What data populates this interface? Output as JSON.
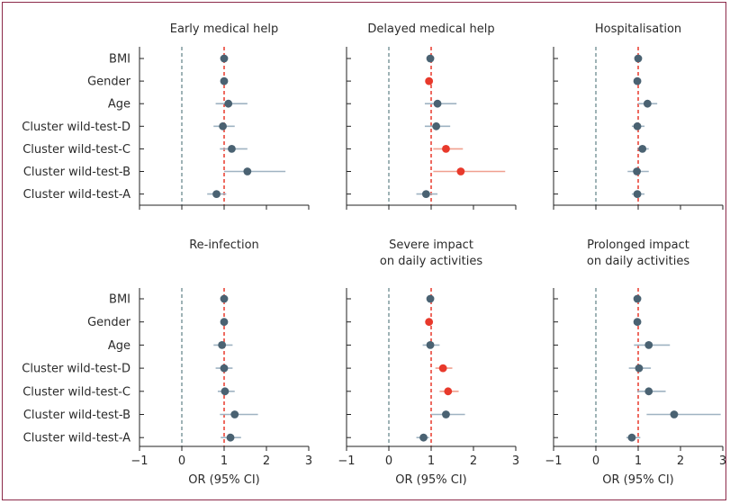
{
  "chart_data": {
    "type": "forest",
    "rows": [
      "BMI",
      "Gender",
      "Age",
      "Cluster wild-test-D",
      "Cluster wild-test-C",
      "Cluster wild-test-B",
      "Cluster wild-test-A"
    ],
    "xlim": [
      -1,
      3
    ],
    "xticks": [
      "−1",
      "0",
      "1",
      "2",
      "3"
    ],
    "xlabel": "OR (95% CI)",
    "reference_lines": {
      "null_effect": 0,
      "unity": 1
    },
    "colors": {
      "not_significant": "#4a6272",
      "significant": "#e8392b",
      "ci_not_significant": "#9fb3c2",
      "ci_significant": "#f0a08f",
      "ref_dashed_gray": "#6b8a8f",
      "ref_dashed_red": "#e8392b"
    },
    "panels": [
      {
        "title": [
          "Early medical help"
        ],
        "points": [
          {
            "or": 1.0,
            "lo": 1.0,
            "hi": 1.0,
            "sig": false
          },
          {
            "or": 1.0,
            "lo": 1.0,
            "hi": 1.0,
            "sig": false
          },
          {
            "or": 1.1,
            "lo": 0.8,
            "hi": 1.55,
            "sig": false
          },
          {
            "or": 0.97,
            "lo": 0.75,
            "hi": 1.25,
            "sig": false
          },
          {
            "or": 1.18,
            "lo": 0.9,
            "hi": 1.55,
            "sig": false
          },
          {
            "or": 1.55,
            "lo": 1.0,
            "hi": 2.45,
            "sig": false
          },
          {
            "or": 0.82,
            "lo": 0.6,
            "hi": 1.05,
            "sig": false
          }
        ]
      },
      {
        "title": [
          "Delayed medical help"
        ],
        "points": [
          {
            "or": 0.98,
            "lo": 0.98,
            "hi": 0.98,
            "sig": false
          },
          {
            "or": 0.95,
            "lo": 0.95,
            "hi": 0.95,
            "sig": true
          },
          {
            "or": 1.15,
            "lo": 0.85,
            "hi": 1.6,
            "sig": false
          },
          {
            "or": 1.12,
            "lo": 0.85,
            "hi": 1.45,
            "sig": false
          },
          {
            "or": 1.35,
            "lo": 1.05,
            "hi": 1.75,
            "sig": true
          },
          {
            "or": 1.7,
            "lo": 1.05,
            "hi": 2.75,
            "sig": true
          },
          {
            "or": 0.88,
            "lo": 0.65,
            "hi": 1.15,
            "sig": false
          }
        ]
      },
      {
        "title": [
          "Hospitalisation"
        ],
        "points": [
          {
            "or": 1.0,
            "lo": 1.0,
            "hi": 1.0,
            "sig": false
          },
          {
            "or": 0.98,
            "lo": 0.98,
            "hi": 0.98,
            "sig": false
          },
          {
            "or": 1.22,
            "lo": 1.0,
            "hi": 1.45,
            "sig": false
          },
          {
            "or": 0.98,
            "lo": 0.85,
            "hi": 1.15,
            "sig": false
          },
          {
            "or": 1.1,
            "lo": 0.98,
            "hi": 1.25,
            "sig": false
          },
          {
            "or": 0.97,
            "lo": 0.75,
            "hi": 1.25,
            "sig": false
          },
          {
            "or": 0.98,
            "lo": 0.85,
            "hi": 1.15,
            "sig": false
          }
        ]
      },
      {
        "title": [
          "Re-infection"
        ],
        "points": [
          {
            "or": 1.0,
            "lo": 1.0,
            "hi": 1.0,
            "sig": false
          },
          {
            "or": 1.0,
            "lo": 1.0,
            "hi": 1.0,
            "sig": false
          },
          {
            "or": 0.95,
            "lo": 0.75,
            "hi": 1.2,
            "sig": false
          },
          {
            "or": 1.0,
            "lo": 0.8,
            "hi": 1.2,
            "sig": false
          },
          {
            "or": 1.02,
            "lo": 0.85,
            "hi": 1.25,
            "sig": false
          },
          {
            "or": 1.25,
            "lo": 0.9,
            "hi": 1.8,
            "sig": false
          },
          {
            "or": 1.15,
            "lo": 0.92,
            "hi": 1.4,
            "sig": false
          }
        ]
      },
      {
        "title": [
          "Severe impact",
          "on daily activities"
        ],
        "points": [
          {
            "or": 0.98,
            "lo": 0.98,
            "hi": 0.98,
            "sig": false
          },
          {
            "or": 0.95,
            "lo": 0.95,
            "hi": 0.95,
            "sig": true
          },
          {
            "or": 0.98,
            "lo": 0.8,
            "hi": 1.2,
            "sig": false
          },
          {
            "or": 1.28,
            "lo": 1.1,
            "hi": 1.5,
            "sig": true
          },
          {
            "or": 1.4,
            "lo": 1.2,
            "hi": 1.65,
            "sig": true
          },
          {
            "or": 1.35,
            "lo": 1.0,
            "hi": 1.8,
            "sig": false
          },
          {
            "or": 0.82,
            "lo": 0.65,
            "hi": 0.95,
            "sig": false
          }
        ]
      },
      {
        "title": [
          "Prolonged impact",
          "on daily activities"
        ],
        "points": [
          {
            "or": 0.98,
            "lo": 0.98,
            "hi": 0.98,
            "sig": false
          },
          {
            "or": 0.98,
            "lo": 0.98,
            "hi": 0.98,
            "sig": false
          },
          {
            "or": 1.25,
            "lo": 0.9,
            "hi": 1.75,
            "sig": false
          },
          {
            "or": 1.02,
            "lo": 0.78,
            "hi": 1.3,
            "sig": false
          },
          {
            "or": 1.25,
            "lo": 0.98,
            "hi": 1.65,
            "sig": false
          },
          {
            "or": 1.85,
            "lo": 1.2,
            "hi": 2.95,
            "sig": false
          },
          {
            "or": 0.85,
            "lo": 0.72,
            "hi": 1.05,
            "sig": false
          }
        ]
      }
    ]
  }
}
